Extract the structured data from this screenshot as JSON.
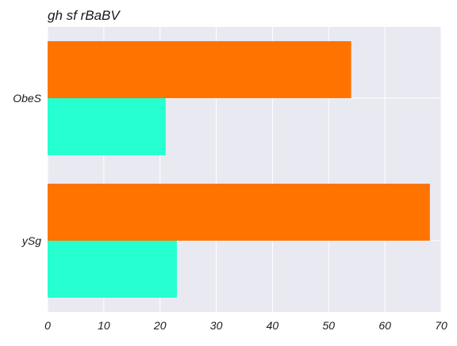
{
  "chart_data": {
    "type": "bar",
    "orientation": "horizontal",
    "title": "gh   sf rBaBV",
    "xlabel": "",
    "ylabel": "",
    "xlim": [
      0,
      70
    ],
    "x_ticks": [
      "0",
      "10",
      "20",
      "30",
      "40",
      "50",
      "60",
      "70"
    ],
    "categories": [
      "ySg",
      "ObeS"
    ],
    "series": [
      {
        "color": "#26ffd0",
        "values": [
          23,
          21
        ]
      },
      {
        "color": "#ff7400",
        "values": [
          68,
          54
        ]
      }
    ],
    "grid": true,
    "background_color": "#e9e9f2",
    "legend": "none"
  }
}
